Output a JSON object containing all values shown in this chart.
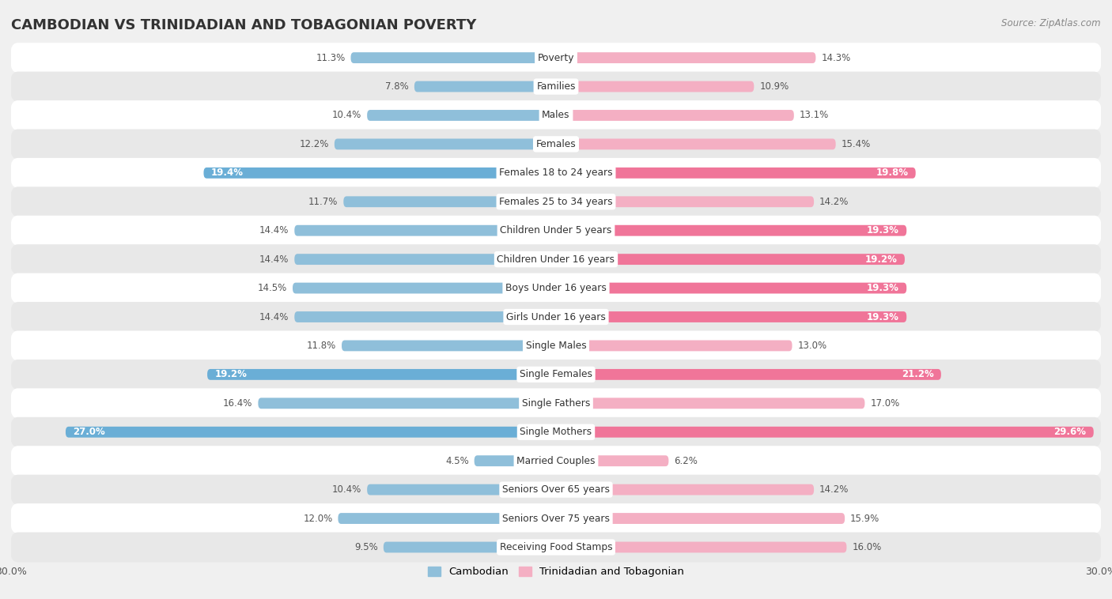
{
  "title": "CAMBODIAN VS TRINIDADIAN AND TOBAGONIAN POVERTY",
  "source": "Source: ZipAtlas.com",
  "categories": [
    "Poverty",
    "Families",
    "Males",
    "Females",
    "Females 18 to 24 years",
    "Females 25 to 34 years",
    "Children Under 5 years",
    "Children Under 16 years",
    "Boys Under 16 years",
    "Girls Under 16 years",
    "Single Males",
    "Single Females",
    "Single Fathers",
    "Single Mothers",
    "Married Couples",
    "Seniors Over 65 years",
    "Seniors Over 75 years",
    "Receiving Food Stamps"
  ],
  "cambodian": [
    11.3,
    7.8,
    10.4,
    12.2,
    19.4,
    11.7,
    14.4,
    14.4,
    14.5,
    14.4,
    11.8,
    19.2,
    16.4,
    27.0,
    4.5,
    10.4,
    12.0,
    9.5
  ],
  "trinidadian": [
    14.3,
    10.9,
    13.1,
    15.4,
    19.8,
    14.2,
    19.3,
    19.2,
    19.3,
    19.3,
    13.0,
    21.2,
    17.0,
    29.6,
    6.2,
    14.2,
    15.9,
    16.0
  ],
  "cambodian_color_normal": "#8fbfda",
  "cambodian_color_highlight": "#6aaed6",
  "trinidadian_color_normal": "#f4afc3",
  "trinidadian_color_highlight": "#f07599",
  "cambodian_highlight_indices": [
    4,
    11,
    13
  ],
  "trinidadian_highlight_indices": [
    4,
    6,
    7,
    8,
    9,
    11,
    13
  ],
  "xlim": 30.0,
  "background_color": "#f0f0f0",
  "row_color_odd": "#ffffff",
  "row_color_even": "#e8e8e8",
  "title_fontsize": 13,
  "label_fontsize": 9,
  "value_fontsize": 8.5
}
